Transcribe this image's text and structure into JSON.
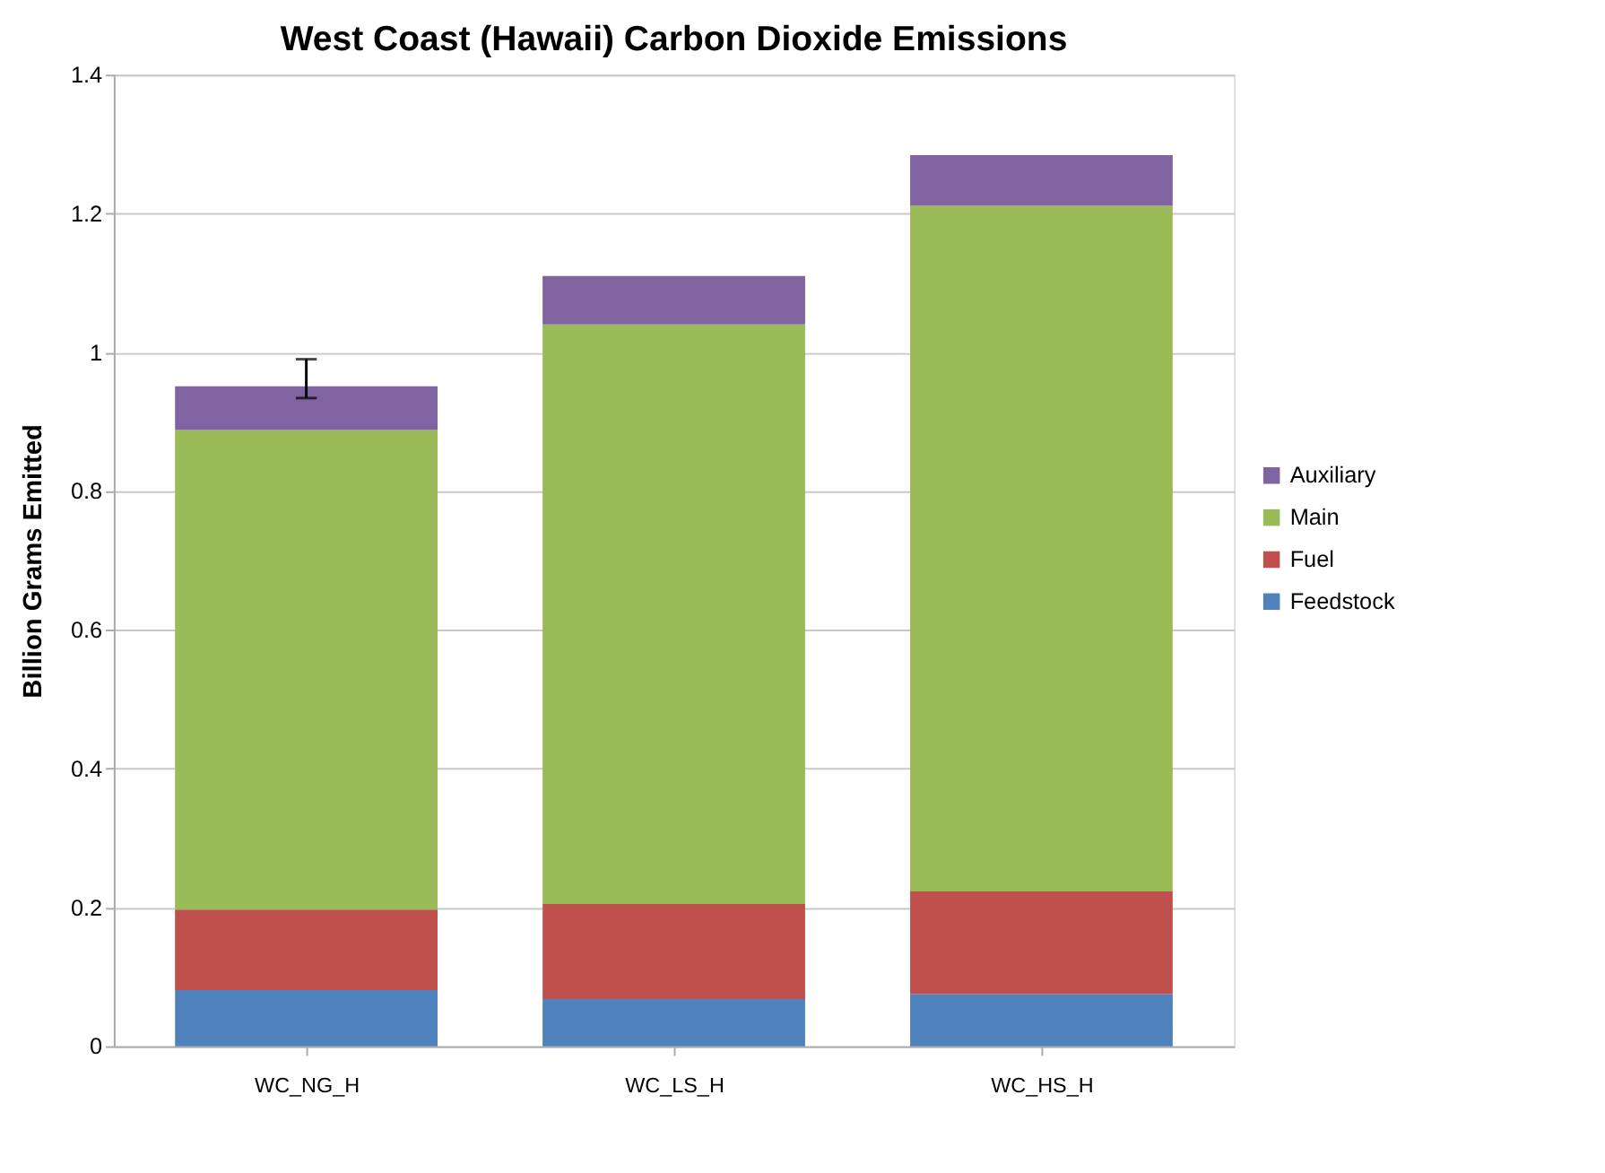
{
  "chart_data": {
    "type": "bar",
    "title": "West Coast (Hawaii) Carbon Dioxide Emissions",
    "ylabel": "Billion Grams Emitted",
    "categories": [
      "WC_NG_H",
      "WC_LS_H",
      "WC_HS_H"
    ],
    "stacked": true,
    "series": [
      {
        "name": "Feedstock",
        "color": "#4f81bd",
        "values": [
          0.081,
          0.068,
          0.075
        ]
      },
      {
        "name": "Fuel",
        "color": "#c0504d",
        "values": [
          0.116,
          0.137,
          0.148
        ]
      },
      {
        "name": "Main",
        "color": "#9bbb59",
        "values": [
          0.691,
          0.835,
          0.988
        ]
      },
      {
        "name": "Auxiliary",
        "color": "#8064a2",
        "values": [
          0.063,
          0.07,
          0.073
        ],
        "errors": [
          [
            0.934,
            0.99
          ],
          null,
          null
        ]
      }
    ],
    "ylim": [
      0,
      1.4
    ],
    "yticks": [
      0,
      0.2,
      0.4,
      0.6,
      0.8,
      1,
      1.2,
      1.4
    ],
    "grid": "y",
    "legend": "right"
  }
}
